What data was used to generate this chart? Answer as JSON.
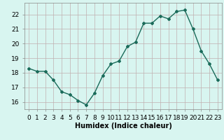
{
  "x": [
    0,
    1,
    2,
    3,
    4,
    5,
    6,
    7,
    8,
    9,
    10,
    11,
    12,
    13,
    14,
    15,
    16,
    17,
    18,
    19,
    20,
    21,
    22,
    23
  ],
  "y": [
    18.3,
    18.1,
    18.1,
    17.5,
    16.7,
    16.5,
    16.1,
    15.8,
    16.6,
    17.8,
    18.6,
    18.8,
    19.8,
    20.1,
    21.4,
    21.4,
    21.9,
    21.7,
    22.2,
    22.3,
    21.0,
    19.5,
    18.6,
    17.5
  ],
  "line_color": "#1a6b5a",
  "marker": "D",
  "marker_size": 2,
  "bg_color": "#d8f5f0",
  "grid_color": "#c0b0b0",
  "xlabel": "Humidex (Indice chaleur)",
  "ylabel": "",
  "title": "",
  "ylim": [
    15.5,
    22.8
  ],
  "xlim": [
    -0.5,
    23.5
  ],
  "yticks": [
    16,
    17,
    18,
    19,
    20,
    21,
    22
  ],
  "xticks": [
    0,
    1,
    2,
    3,
    4,
    5,
    6,
    7,
    8,
    9,
    10,
    11,
    12,
    13,
    14,
    15,
    16,
    17,
    18,
    19,
    20,
    21,
    22,
    23
  ],
  "xlabel_fontsize": 7,
  "tick_fontsize": 6.5,
  "line_width": 1.0
}
